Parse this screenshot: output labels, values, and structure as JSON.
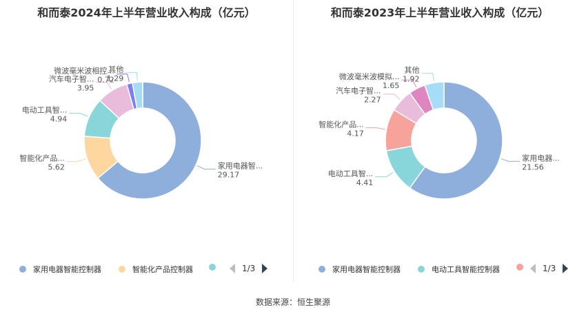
{
  "chart_data": [
    {
      "type": "pie",
      "title": "和而泰2024年上半年营业收入构成（亿元）",
      "slices": [
        {
          "label": "家用电器智...",
          "full_name": "家用电器智能控制器",
          "value": 29.17,
          "color": "#8eaedc"
        },
        {
          "label": "智能化产品...",
          "full_name": "智能化产品控制器",
          "value": 5.62,
          "color": "#fdd6a0"
        },
        {
          "label": "电动工具智...",
          "value": 4.94,
          "color": "#89d6da"
        },
        {
          "label": "汽车电子智...",
          "value": 3.95,
          "color": "#e9bcdc"
        },
        {
          "label": "微波毫米波相控...",
          "value": 0.72,
          "color": "#7b7ff0"
        },
        {
          "label": "其他",
          "value": 1.29,
          "color": "#a6dcf6"
        }
      ],
      "legend": [
        "家用电器智能控制器",
        "智能化产品控制器"
      ],
      "pager": "1/3"
    },
    {
      "type": "pie",
      "title": "和而泰2023年上半年营业收入构成（亿元）",
      "slices": [
        {
          "label": "家用电器...",
          "full_name": "家用电器智能控制器",
          "value": 21.56,
          "color": "#8eaedc"
        },
        {
          "label": "电动工具智...",
          "full_name": "电动工具智能控制器",
          "value": 4.41,
          "color": "#89d6da"
        },
        {
          "label": "智能化产品...",
          "value": 4.17,
          "color": "#f7a39b"
        },
        {
          "label": "汽车电子智...",
          "value": 2.27,
          "color": "#e9bcdc"
        },
        {
          "label": "微波毫米波模拟...",
          "value": 1.65,
          "color": "#df86c2"
        },
        {
          "label": "其他",
          "value": 1.92,
          "color": "#a6dcf6"
        }
      ],
      "legend": [
        "家用电器智能控制器",
        "电动工具智能控制器"
      ],
      "pager": "1/3"
    }
  ],
  "footer": {
    "source": "数据来源：恒生聚源"
  }
}
